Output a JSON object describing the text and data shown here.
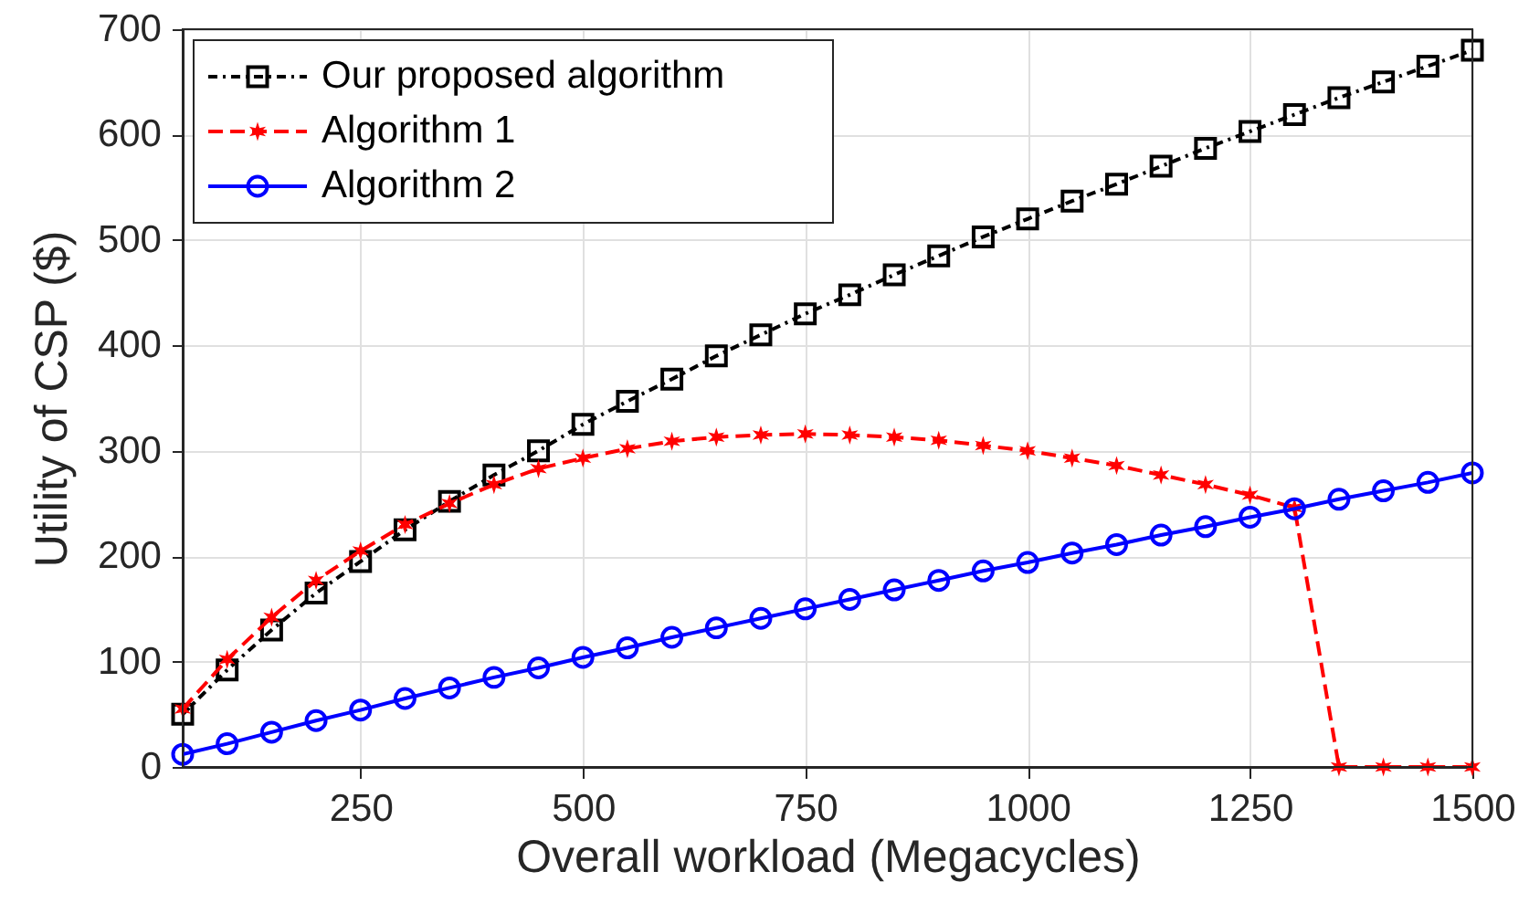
{
  "chart_data": {
    "type": "line",
    "xlabel": "Overall workload (Megacycles)",
    "ylabel": "Utility of CSP ($)",
    "x": [
      50,
      100,
      150,
      200,
      250,
      300,
      350,
      400,
      450,
      500,
      550,
      600,
      650,
      700,
      750,
      800,
      850,
      900,
      950,
      1000,
      1050,
      1100,
      1150,
      1200,
      1250,
      1300,
      1350,
      1400,
      1450,
      1500
    ],
    "series": [
      {
        "name": "Our proposed algorithm",
        "color": "#000000",
        "marker": "square",
        "line_style": "dotted",
        "values": [
          50,
          92,
          130,
          165,
          195,
          225,
          252,
          277,
          300,
          325,
          347,
          368,
          390,
          410,
          430,
          448,
          467,
          485,
          503,
          520,
          537,
          553,
          570,
          587,
          603,
          619,
          635,
          650,
          665,
          680
        ]
      },
      {
        "name": "Algorithm 1",
        "color": "#ff0000",
        "marker": "cross",
        "line_style": "dashed",
        "values": [
          55,
          102,
          142,
          177,
          205,
          230,
          250,
          268,
          283,
          293,
          302,
          309,
          313,
          315,
          316,
          315,
          313,
          310,
          305,
          300,
          293,
          286,
          277,
          268,
          258,
          246,
          0,
          0,
          0,
          0
        ]
      },
      {
        "name": "Algorithm 2",
        "color": "#0000ff",
        "marker": "circle",
        "line_style": "solid",
        "values": [
          12,
          22,
          33,
          44,
          54,
          65,
          75,
          85,
          94,
          104,
          113,
          123,
          132,
          141,
          150,
          159,
          168,
          177,
          186,
          194,
          203,
          211,
          220,
          228,
          237,
          245,
          254,
          262,
          270,
          279
        ]
      }
    ],
    "xlim": [
      50,
      1500
    ],
    "xticks": [
      250,
      500,
      750,
      1000,
      1250,
      1500
    ],
    "ylim": [
      0,
      700
    ],
    "yticks": [
      0,
      100,
      200,
      300,
      400,
      500,
      600,
      700
    ],
    "grid": true,
    "legend": "top left"
  }
}
